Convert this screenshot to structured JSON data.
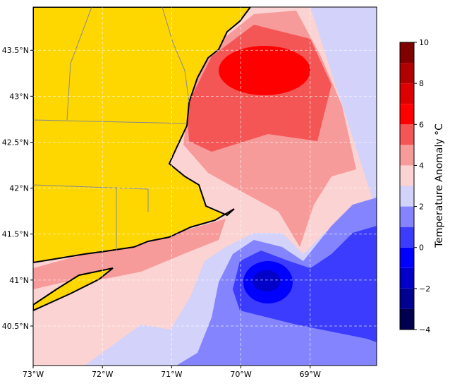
{
  "map": {
    "xlim": [
      -73,
      -68.04
    ],
    "ylim": [
      40.07,
      43.97
    ],
    "xticks": [
      {
        "value": -73,
        "label": "73°W"
      },
      {
        "value": -72,
        "label": "72°W"
      },
      {
        "value": -71,
        "label": "71°W"
      },
      {
        "value": -70,
        "label": "70°W"
      },
      {
        "value": -69,
        "label": "69°W"
      }
    ],
    "yticks": [
      {
        "value": 40.5,
        "label": "40.5°N"
      },
      {
        "value": 41,
        "label": "41°N"
      },
      {
        "value": 41.5,
        "label": "41.5°N"
      },
      {
        "value": 42,
        "label": "42°N"
      },
      {
        "value": 42.5,
        "label": "42.5°N"
      },
      {
        "value": 43,
        "label": "43°N"
      },
      {
        "value": 43.5,
        "label": "43.5°N"
      }
    ],
    "colorbar": {
      "label": "Temperature Anomaly °C",
      "levels": [
        -4,
        -3,
        -2,
        -1,
        0,
        1,
        2,
        3,
        4,
        5,
        6,
        7,
        8,
        9,
        10
      ],
      "colors": [
        "#00004e",
        "#000090",
        "#0000c8",
        "#0000ff",
        "#3c3cff",
        "#8484ff",
        "#d2d2fb",
        "#fbd3d3",
        "#f79a9a",
        "#f45656",
        "#ff0000",
        "#dc0000",
        "#b00000",
        "#800000"
      ],
      "ticks": [
        {
          "value": -4,
          "label": "−4"
        },
        {
          "value": -2,
          "label": "−2"
        },
        0,
        2,
        4,
        6,
        8,
        10
      ]
    }
  }
}
